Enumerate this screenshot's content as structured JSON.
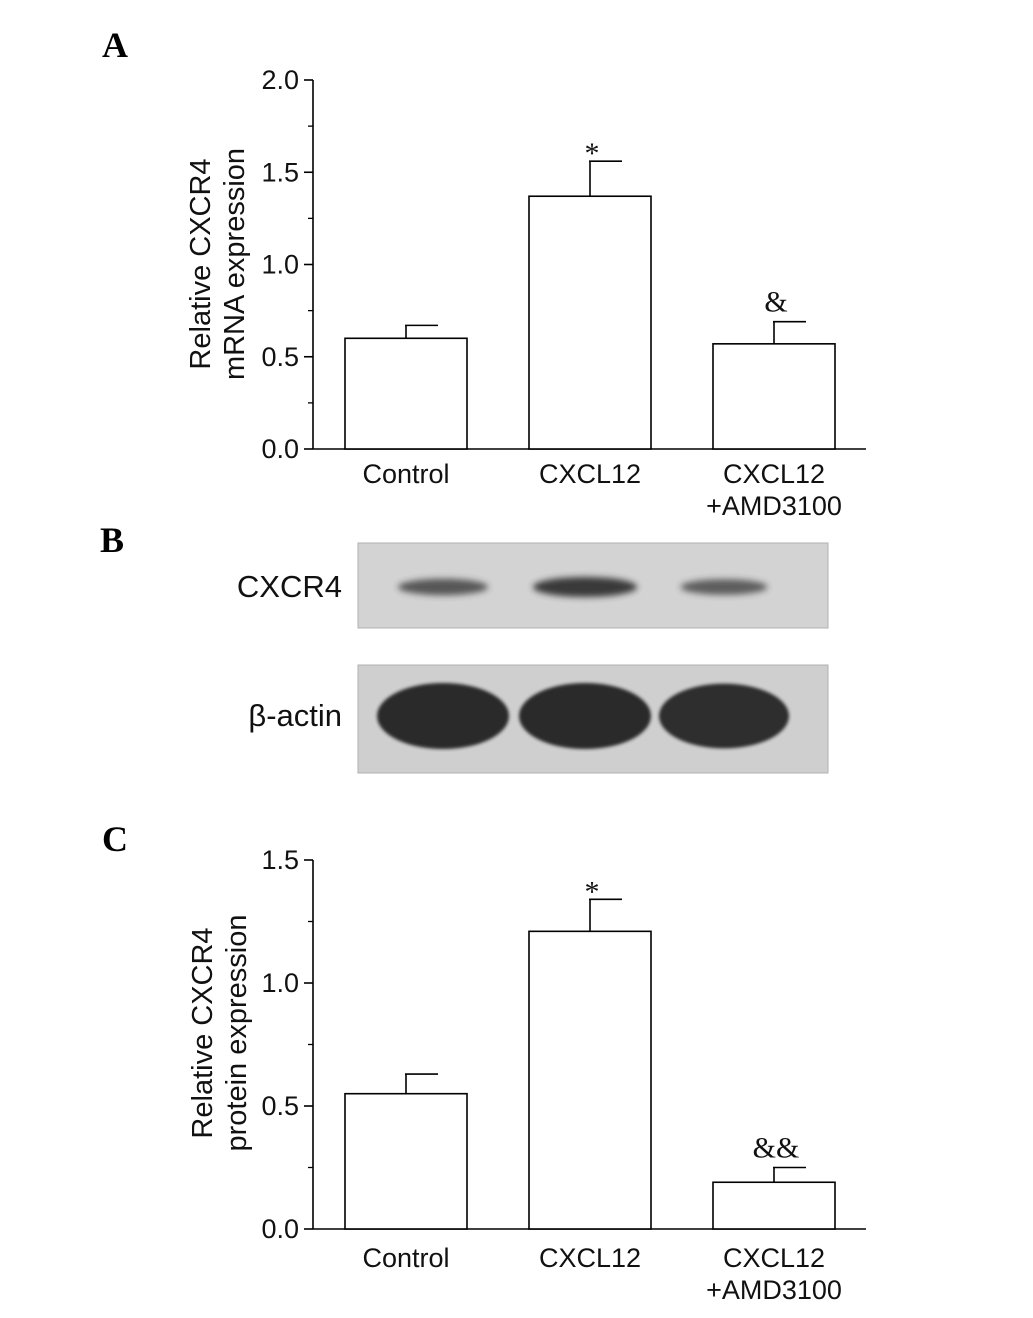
{
  "panels": {
    "a": "A",
    "b": "B",
    "c": "C"
  },
  "chart_data": [
    {
      "type": "bar",
      "panel": "A",
      "categories": [
        "Control",
        "CXCL12",
        "CXCL12\n+AMD3100"
      ],
      "values": [
        0.6,
        1.37,
        0.57
      ],
      "errors": [
        0.07,
        0.19,
        0.12
      ],
      "significance": [
        "",
        "*",
        "&"
      ],
      "ylabel": "Relative CXCR4\nmRNA expression",
      "ylim": [
        0,
        2.0
      ],
      "yticks": [
        "0.0",
        "0.5",
        "1.0",
        "1.5",
        "2.0"
      ],
      "grid": false,
      "bar_color": "#ffffff"
    },
    {
      "type": "bar",
      "panel": "C",
      "categories": [
        "Control",
        "CXCL12",
        "CXCL12\n+AMD3100"
      ],
      "values": [
        0.55,
        1.21,
        0.19
      ],
      "errors": [
        0.08,
        0.13,
        0.06
      ],
      "significance": [
        "",
        "*",
        "&&"
      ],
      "ylabel": "Relative CXCR4\nprotein expression",
      "ylim": [
        0,
        1.5
      ],
      "yticks": [
        "0.0",
        "0.5",
        "1.0",
        "1.5"
      ],
      "grid": false,
      "bar_color": "#ffffff"
    }
  ],
  "blot": {
    "rows": [
      {
        "label": "CXCR4",
        "band_intensity": [
          0.55,
          1.0,
          0.45
        ],
        "tone": "#303030"
      },
      {
        "label": "β-actin",
        "band_intensity": [
          1.0,
          1.0,
          0.95
        ],
        "tone": "#242424"
      }
    ]
  }
}
